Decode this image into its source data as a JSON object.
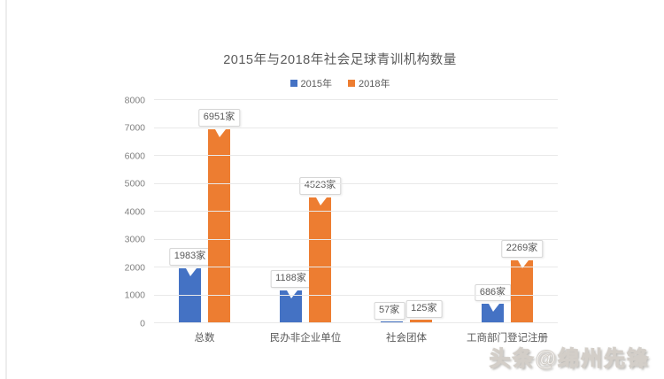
{
  "watermark": {
    "text": "头条@绵州先锋"
  },
  "chart_data": {
    "type": "bar",
    "title": "2015年与2018年社会足球青训机构数量",
    "categories": [
      "总数",
      "民办非企业单位",
      "社会团体",
      "工商部门登记注册"
    ],
    "series": [
      {
        "name": "2015年",
        "color": "#4472C4",
        "values": [
          1983,
          1188,
          57,
          686
        ],
        "labels": [
          "1983家",
          "1188家",
          "57家",
          "686家"
        ]
      },
      {
        "name": "2018年",
        "color": "#ED7D31",
        "values": [
          6951,
          4523,
          125,
          2269
        ],
        "labels": [
          "6951家",
          "4523家",
          "125家",
          "2269家"
        ]
      }
    ],
    "label_unit": "家",
    "y_axis": {
      "min": 0,
      "max": 8000,
      "step": 1000,
      "ticks": [
        "0",
        "1000",
        "2000",
        "3000",
        "4000",
        "5000",
        "6000",
        "7000",
        "8000"
      ]
    },
    "legend_position": "top",
    "grid": true
  }
}
